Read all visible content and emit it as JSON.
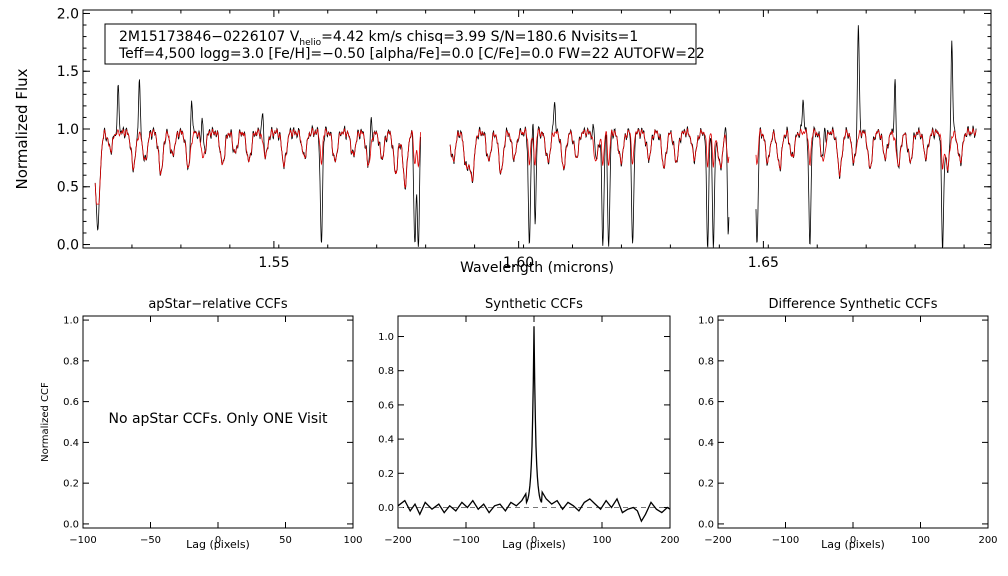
{
  "colors": {
    "observed": "#000000",
    "model": "#dd0000",
    "axes": "#000000",
    "baseline": "#777777"
  },
  "chart_data": [
    {
      "id": "spectrum",
      "type": "line",
      "title": "",
      "xlabel": "Wavelength (microns)",
      "ylabel": "Normalized Flux",
      "xlim": [
        1.511,
        1.6965
      ],
      "ylim": [
        -0.03,
        2.03
      ],
      "xticks": [
        1.55,
        1.6,
        1.65
      ],
      "xtick_labels": [
        "1.55",
        "1.60",
        "1.65"
      ],
      "yticks": [
        0.0,
        0.5,
        1.0,
        1.5,
        2.0
      ],
      "ytick_labels": [
        "0.0",
        "0.5",
        "1.0",
        "1.5",
        "2.0"
      ],
      "info_line1": "2M15173846−0226107  V",
      "info_sub": "helio",
      "info_line1b": "=4.42 km/s  chisq=3.99  S/N=180.6  Nvisits=1",
      "info_line2": "Teff=4,500 logg=3.0 [Fe/H]=−0.50 [alpha/Fe]=0.0 [C/Fe]=0.0 FW=22 AUTOFW=22",
      "chips": [
        [
          1.5135,
          1.58
        ],
        [
          1.586,
          1.643
        ],
        [
          1.6485,
          1.6935
        ]
      ],
      "continuum": 0.97,
      "absorption_lines": [
        [
          1.514,
          0.8
        ],
        [
          1.5166,
          0.15
        ],
        [
          1.5213,
          0.3
        ],
        [
          1.5237,
          0.25
        ],
        [
          1.5269,
          0.35
        ],
        [
          1.5293,
          0.2
        ],
        [
          1.5325,
          0.3
        ],
        [
          1.5356,
          0.22
        ],
        [
          1.5395,
          0.28
        ],
        [
          1.5421,
          0.18
        ],
        [
          1.5449,
          0.25
        ],
        [
          1.5483,
          0.2
        ],
        [
          1.5521,
          0.28
        ],
        [
          1.5562,
          0.22
        ],
        [
          1.5597,
          0.97
        ],
        [
          1.5625,
          0.25
        ],
        [
          1.5662,
          0.2
        ],
        [
          1.5693,
          0.28
        ],
        [
          1.5721,
          0.22
        ],
        [
          1.5749,
          0.35
        ],
        [
          1.5768,
          0.45
        ],
        [
          1.5788,
          0.97
        ],
        [
          1.5795,
          0.97
        ],
        [
          1.5866,
          0.25
        ],
        [
          1.5893,
          0.3
        ],
        [
          1.5905,
          0.4
        ],
        [
          1.5939,
          0.25
        ],
        [
          1.5964,
          0.35
        ],
        [
          1.5991,
          0.22
        ],
        [
          1.6022,
          0.97
        ],
        [
          1.6033,
          0.97
        ],
        [
          1.606,
          0.25
        ],
        [
          1.6092,
          0.3
        ],
        [
          1.6118,
          0.22
        ],
        [
          1.6158,
          0.25
        ],
        [
          1.6172,
          0.97
        ],
        [
          1.6184,
          0.97
        ],
        [
          1.6209,
          0.25
        ],
        [
          1.6233,
          0.97
        ],
        [
          1.6266,
          0.22
        ],
        [
          1.6297,
          0.3
        ],
        [
          1.6322,
          0.25
        ],
        [
          1.6359,
          0.22
        ],
        [
          1.6386,
          0.97
        ],
        [
          1.6398,
          0.97
        ],
        [
          1.6412,
          0.3
        ],
        [
          1.6428,
          0.97
        ],
        [
          1.6487,
          0.97
        ],
        [
          1.6509,
          0.25
        ],
        [
          1.6533,
          0.3
        ],
        [
          1.6559,
          0.22
        ],
        [
          1.6595,
          0.97
        ],
        [
          1.6622,
          0.25
        ],
        [
          1.6656,
          0.35
        ],
        [
          1.6685,
          0.25
        ],
        [
          1.6718,
          0.3
        ],
        [
          1.6749,
          0.22
        ],
        [
          1.6776,
          0.28
        ],
        [
          1.68,
          0.25
        ],
        [
          1.6832,
          0.22
        ],
        [
          1.6866,
          0.97
        ],
        [
          1.6876,
          0.3
        ],
        [
          1.6902,
          0.25
        ]
      ],
      "emission_spikes": [
        [
          1.5182,
          1.35
        ],
        [
          1.5225,
          1.42
        ],
        [
          1.5332,
          1.34
        ],
        [
          1.5354,
          1.3
        ],
        [
          1.5477,
          1.22
        ],
        [
          1.5698,
          1.2
        ],
        [
          1.6031,
          1.43
        ],
        [
          1.6073,
          1.25
        ],
        [
          1.6154,
          1.18
        ],
        [
          1.6425,
          1.24
        ],
        [
          1.6581,
          1.25
        ],
        [
          1.6625,
          1.2
        ],
        [
          1.6694,
          1.96
        ],
        [
          1.6769,
          1.47
        ],
        [
          1.6885,
          1.8
        ]
      ]
    },
    {
      "id": "apstar",
      "type": "line",
      "title": "apStar−relative CCFs",
      "xlabel": "Lag (pixels)",
      "ylabel": "Normalized CCF",
      "xlim": [
        -100,
        100
      ],
      "ylim": [
        -0.02,
        1.02
      ],
      "xticks": [
        -100,
        -50,
        0,
        50,
        100
      ],
      "xtick_labels": [
        "−100",
        "−50",
        "0",
        "50",
        "100"
      ],
      "yticks": [
        0.0,
        0.2,
        0.4,
        0.6,
        0.8,
        1.0
      ],
      "ytick_labels": [
        "0.0",
        "0.2",
        "0.4",
        "0.6",
        "0.8",
        "1.0"
      ],
      "message": "No apStar CCFs.  Only ONE Visit"
    },
    {
      "id": "synthetic",
      "type": "line",
      "title": "Synthetic CCFs",
      "xlabel": "Lag (pixels)",
      "xlim": [
        -200,
        200
      ],
      "ylim": [
        -0.12,
        1.12
      ],
      "xticks": [
        -200,
        -100,
        0,
        100,
        200
      ],
      "xtick_labels": [
        "−200",
        "−100",
        "0",
        "100",
        "200"
      ],
      "yticks": [
        0.0,
        0.2,
        0.4,
        0.6,
        0.8,
        1.0
      ],
      "ytick_labels": [
        "0.0",
        "0.2",
        "0.4",
        "0.6",
        "0.8",
        "1.0"
      ],
      "baseline": 0.0,
      "peak_lag": 0,
      "peak_value": 1.0,
      "noise_points": [
        [
          -200,
          0.01
        ],
        [
          -190,
          0.04
        ],
        [
          -182,
          -0.02
        ],
        [
          -175,
          0.02
        ],
        [
          -168,
          -0.04
        ],
        [
          -160,
          0.03
        ],
        [
          -150,
          -0.01
        ],
        [
          -140,
          0.02
        ],
        [
          -132,
          -0.03
        ],
        [
          -124,
          0.01
        ],
        [
          -115,
          -0.02
        ],
        [
          -106,
          0.03
        ],
        [
          -98,
          0.0
        ],
        [
          -90,
          0.04
        ],
        [
          -82,
          -0.01
        ],
        [
          -74,
          0.02
        ],
        [
          -66,
          -0.03
        ],
        [
          -58,
          0.01
        ],
        [
          -50,
          0.02
        ],
        [
          -42,
          -0.02
        ],
        [
          -34,
          0.03
        ],
        [
          -26,
          0.01
        ],
        [
          -18,
          0.04
        ],
        [
          -12,
          0.08
        ],
        [
          12,
          0.09
        ],
        [
          18,
          0.05
        ],
        [
          26,
          0.02
        ],
        [
          34,
          0.04
        ],
        [
          42,
          -0.01
        ],
        [
          50,
          0.03
        ],
        [
          58,
          0.01
        ],
        [
          66,
          -0.02
        ],
        [
          74,
          0.03
        ],
        [
          82,
          0.05
        ],
        [
          90,
          0.02
        ],
        [
          98,
          -0.01
        ],
        [
          106,
          0.04
        ],
        [
          114,
          0.0
        ],
        [
          122,
          0.05
        ],
        [
          130,
          -0.03
        ],
        [
          138,
          -0.01
        ],
        [
          146,
          0.0
        ],
        [
          152,
          -0.02
        ],
        [
          158,
          -0.08
        ],
        [
          164,
          -0.04
        ],
        [
          172,
          0.03
        ],
        [
          180,
          -0.01
        ],
        [
          188,
          -0.03
        ],
        [
          196,
          0.0
        ],
        [
          200,
          -0.01
        ]
      ]
    },
    {
      "id": "difference",
      "type": "line",
      "title": "Difference Synthetic CCFs",
      "xlabel": "Lag (pixels)",
      "xlim": [
        -200,
        200
      ],
      "ylim": [
        -0.02,
        1.02
      ],
      "xticks": [
        -200,
        -100,
        0,
        100,
        200
      ],
      "xtick_labels": [
        "−200",
        "−100",
        "0",
        "100",
        "200"
      ],
      "yticks": [
        0.0,
        0.2,
        0.4,
        0.6,
        0.8,
        1.0
      ],
      "ytick_labels": [
        "0.0",
        "0.2",
        "0.4",
        "0.6",
        "0.8",
        "1.0"
      ]
    }
  ]
}
